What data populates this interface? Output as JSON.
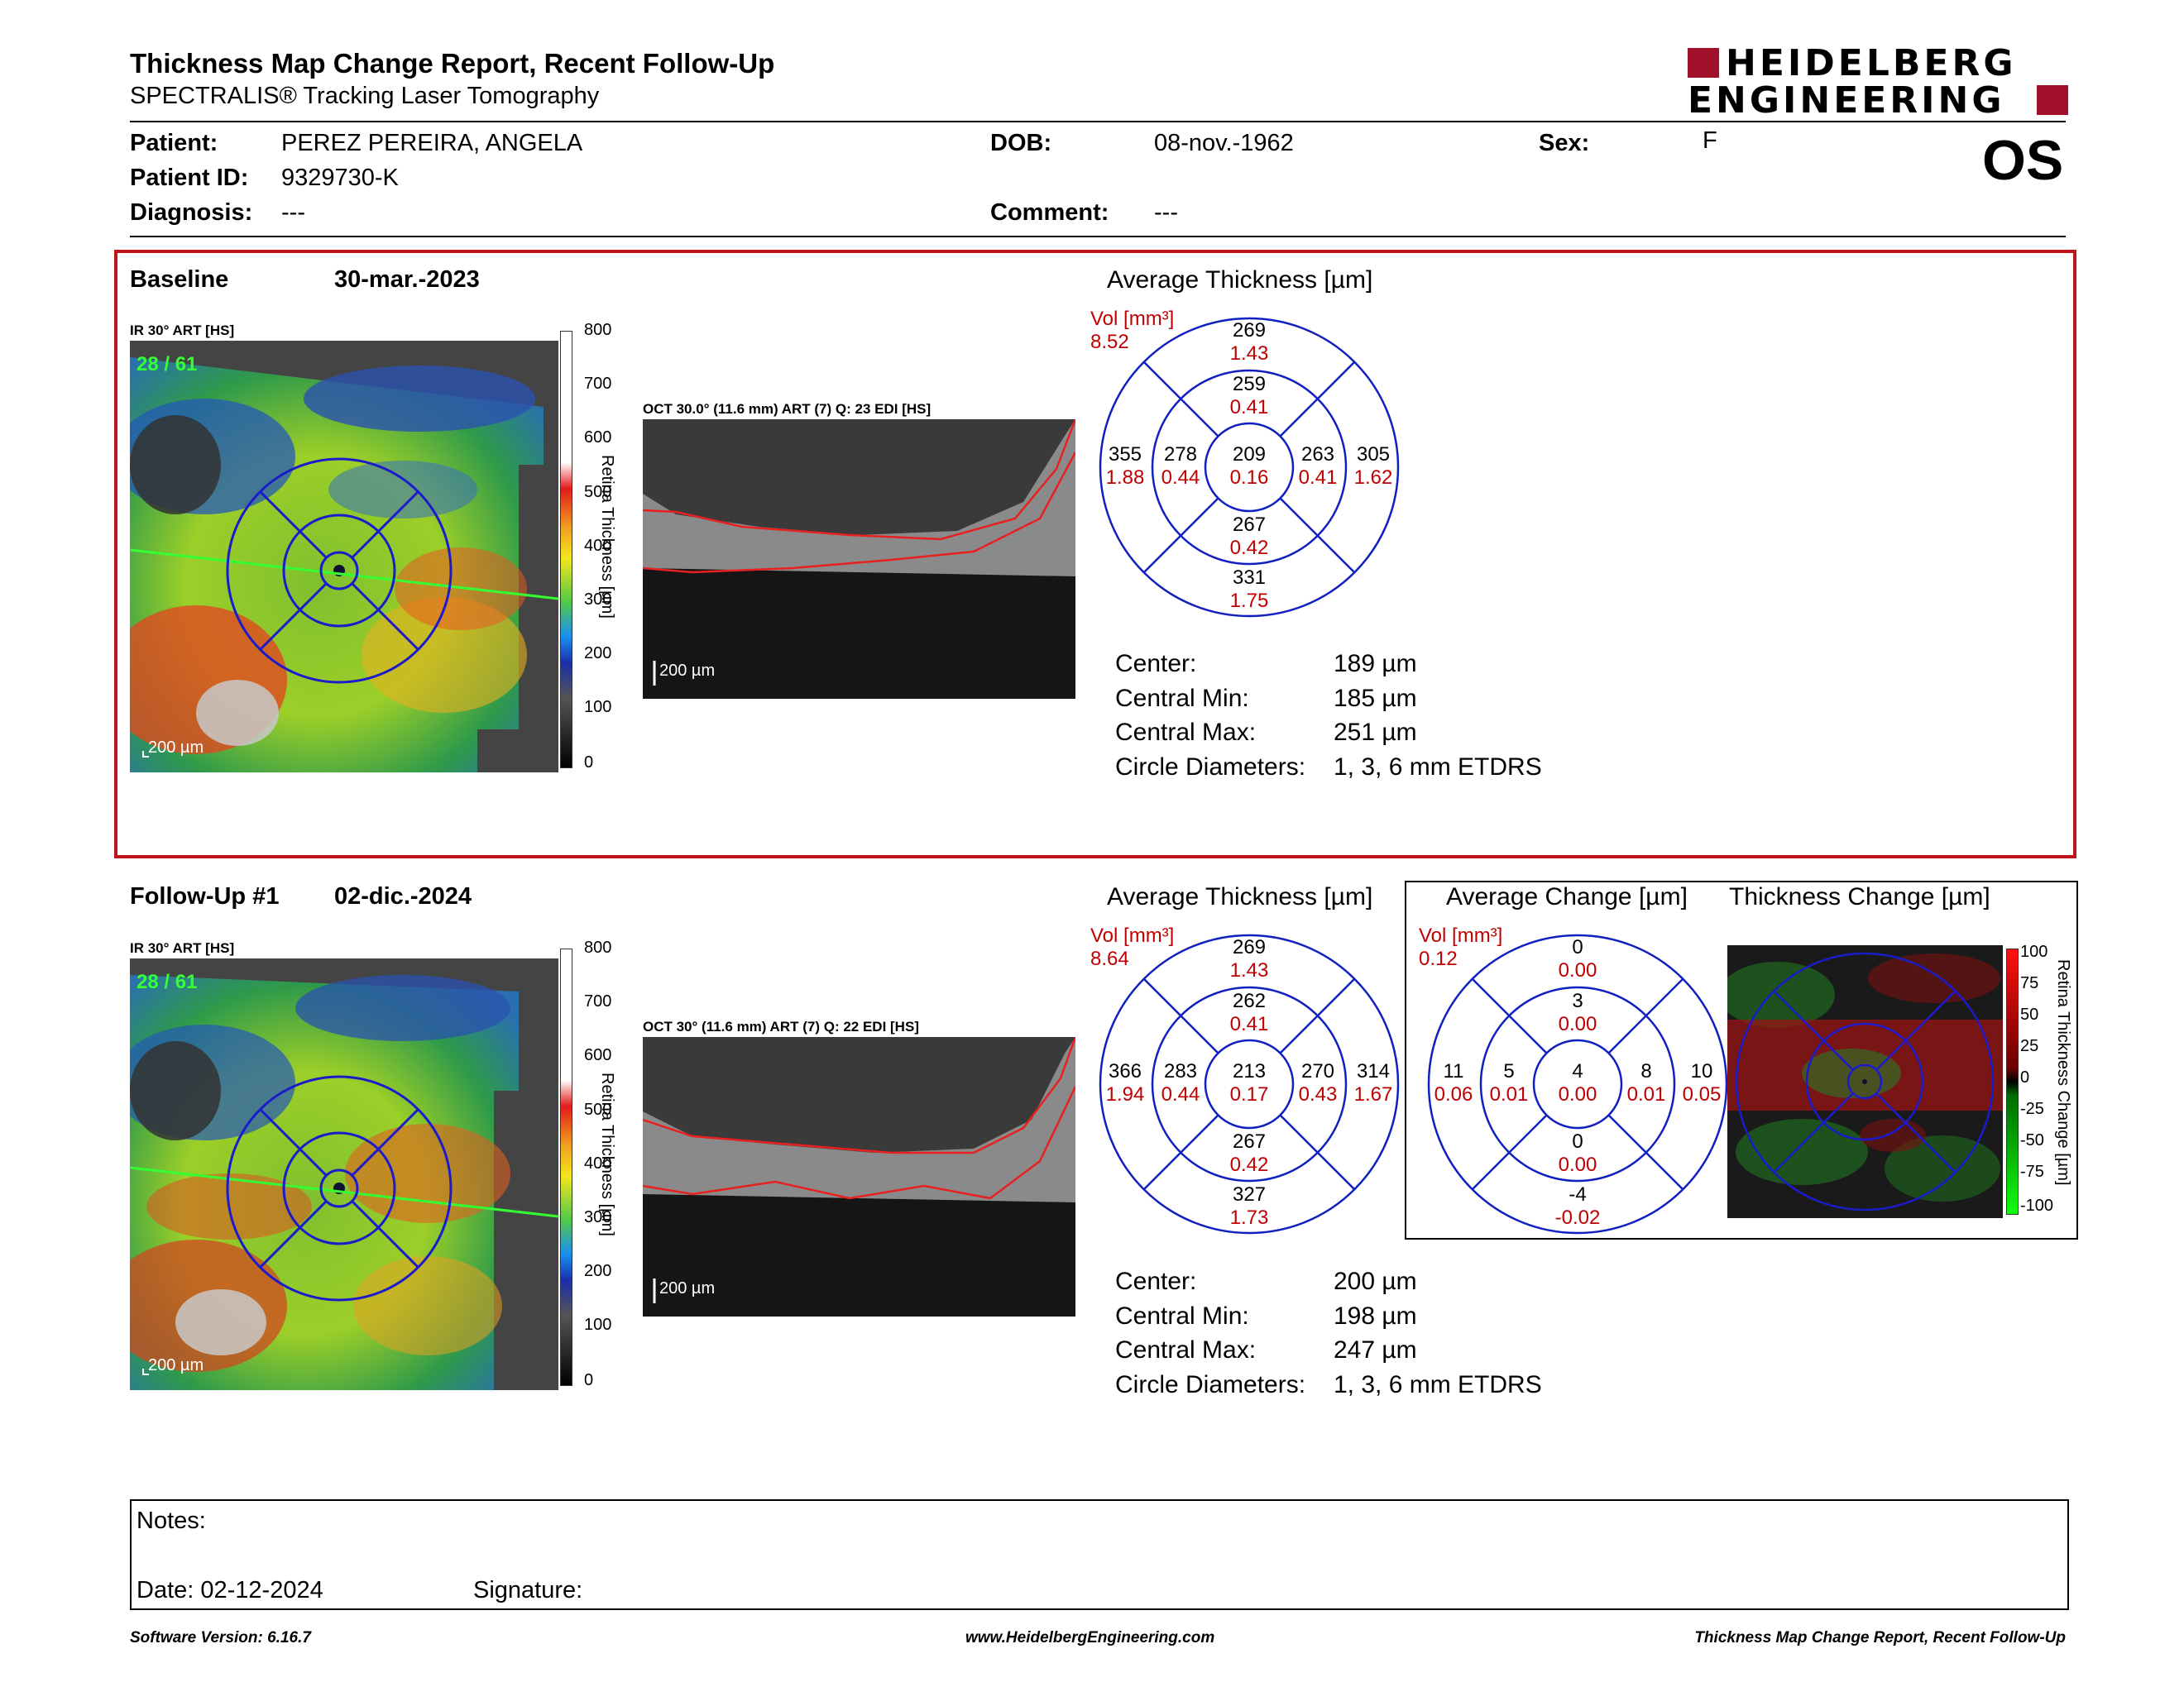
{
  "header": {
    "title": "Thickness Map Change Report, Recent Follow-Up",
    "subtitle": "SPECTRALIS® Tracking Laser Tomography",
    "logo_line1": "HEIDELBERG",
    "logo_line2": "ENGINEERING",
    "eye": "OS"
  },
  "patient": {
    "patient_label": "Patient:",
    "patient_value": "PEREZ PEREIRA, ANGELA",
    "id_label": "Patient ID:",
    "id_value": "9329730-K",
    "diagnosis_label": "Diagnosis:",
    "diagnosis_value": "---",
    "dob_label": "DOB:",
    "dob_value": "08-nov.-1962",
    "comment_label": "Comment:",
    "comment_value": "---",
    "sex_label": "Sex:",
    "sex_value": "F"
  },
  "baseline": {
    "label": "Baseline",
    "date": "30-mar.-2023",
    "ir_caption": "IR 30° ART [HS]",
    "frame": "28 / 61",
    "scale": "200 µm",
    "oct_caption": "OCT 30.0° (11.6 mm) ART (7) Q: 23 EDI [HS]",
    "oct_scale": "200 µm",
    "colorbar_ticks": [
      "800",
      "700",
      "600",
      "500",
      "400",
      "300",
      "200",
      "100",
      "0"
    ],
    "colorbar_title": "Retina Thickness [µm]",
    "avg_title": "Average Thickness [µm]",
    "vol_label": "Vol [mm³]",
    "vol_value": "8.52",
    "etdrs": {
      "center": [
        "209",
        "0.16"
      ],
      "inner_sup": [
        "259",
        "0.41"
      ],
      "inner_nas": [
        "263",
        "0.41"
      ],
      "inner_inf": [
        "267",
        "0.42"
      ],
      "inner_tmp": [
        "278",
        "0.44"
      ],
      "outer_sup": [
        "269",
        "1.43"
      ],
      "outer_nas": [
        "305",
        "1.62"
      ],
      "outer_inf": [
        "331",
        "1.75"
      ],
      "outer_tmp": [
        "355",
        "1.88"
      ]
    },
    "stats": {
      "center_label": "Center:",
      "center_value": "189 µm",
      "min_label": "Central Min:",
      "min_value": "185 µm",
      "max_label": "Central Max:",
      "max_value": "251 µm",
      "diam_label": "Circle Diameters:",
      "diam_value": "1, 3, 6 mm ETDRS"
    }
  },
  "followup": {
    "label": "Follow-Up #1",
    "date": "02-dic.-2024",
    "ir_caption": "IR 30° ART [HS]",
    "frame": "28 / 61",
    "scale": "200 µm",
    "oct_caption": "OCT 30° (11.6 mm) ART (7) Q: 22 EDI [HS]",
    "oct_scale": "200 µm",
    "colorbar_ticks": [
      "800",
      "700",
      "600",
      "500",
      "400",
      "300",
      "200",
      "100",
      "0"
    ],
    "colorbar_title": "Retina Thickness [µm]",
    "avg_title": "Average Thickness [µm]",
    "vol_label": "Vol [mm³]",
    "vol_value": "8.64",
    "etdrs": {
      "center": [
        "213",
        "0.17"
      ],
      "inner_sup": [
        "262",
        "0.41"
      ],
      "inner_nas": [
        "270",
        "0.43"
      ],
      "inner_inf": [
        "267",
        "0.42"
      ],
      "inner_tmp": [
        "283",
        "0.44"
      ],
      "outer_sup": [
        "269",
        "1.43"
      ],
      "outer_nas": [
        "314",
        "1.67"
      ],
      "outer_inf": [
        "327",
        "1.73"
      ],
      "outer_tmp": [
        "366",
        "1.94"
      ]
    },
    "stats": {
      "center_label": "Center:",
      "center_value": "200 µm",
      "min_label": "Central Min:",
      "min_value": "198 µm",
      "max_label": "Central Max:",
      "max_value": "247 µm",
      "diam_label": "Circle Diameters:",
      "diam_value": "1, 3, 6 mm ETDRS"
    }
  },
  "change": {
    "avg_change_title": "Average Change [µm]",
    "thickness_change_title": "Thickness Change [µm]",
    "vol_label": "Vol [mm³]",
    "vol_value": "0.12",
    "etdrs": {
      "center": [
        "4",
        "0.00"
      ],
      "inner_sup": [
        "3",
        "0.00"
      ],
      "inner_nas": [
        "8",
        "0.01"
      ],
      "inner_inf": [
        "0",
        "0.00"
      ],
      "inner_tmp": [
        "5",
        "0.01"
      ],
      "outer_sup": [
        "0",
        "0.00"
      ],
      "outer_nas": [
        "10",
        "0.05"
      ],
      "outer_inf": [
        "-4",
        "-0.02"
      ],
      "outer_tmp": [
        "11",
        "0.06"
      ]
    },
    "colorbar_ticks": [
      "100",
      "75",
      "50",
      "25",
      "0",
      "-25",
      "-50",
      "-75",
      "-100"
    ],
    "colorbar_title": "Retina Thickness Change [µm]"
  },
  "notes": {
    "notes_label": "Notes:",
    "date_label": "Date: 02-12-2024",
    "signature_label": "Signature:"
  },
  "footer": {
    "software": "Software Version: 6.16.7",
    "website": "www.HeidelbergEngineering.com",
    "report_name": "Thickness Map Change Report, Recent Follow-Up"
  },
  "colors": {
    "brand": "#a0102a",
    "panel_border": "#c0141c",
    "etdrs_blue": "#1020c0",
    "value_red": "#c00000"
  }
}
